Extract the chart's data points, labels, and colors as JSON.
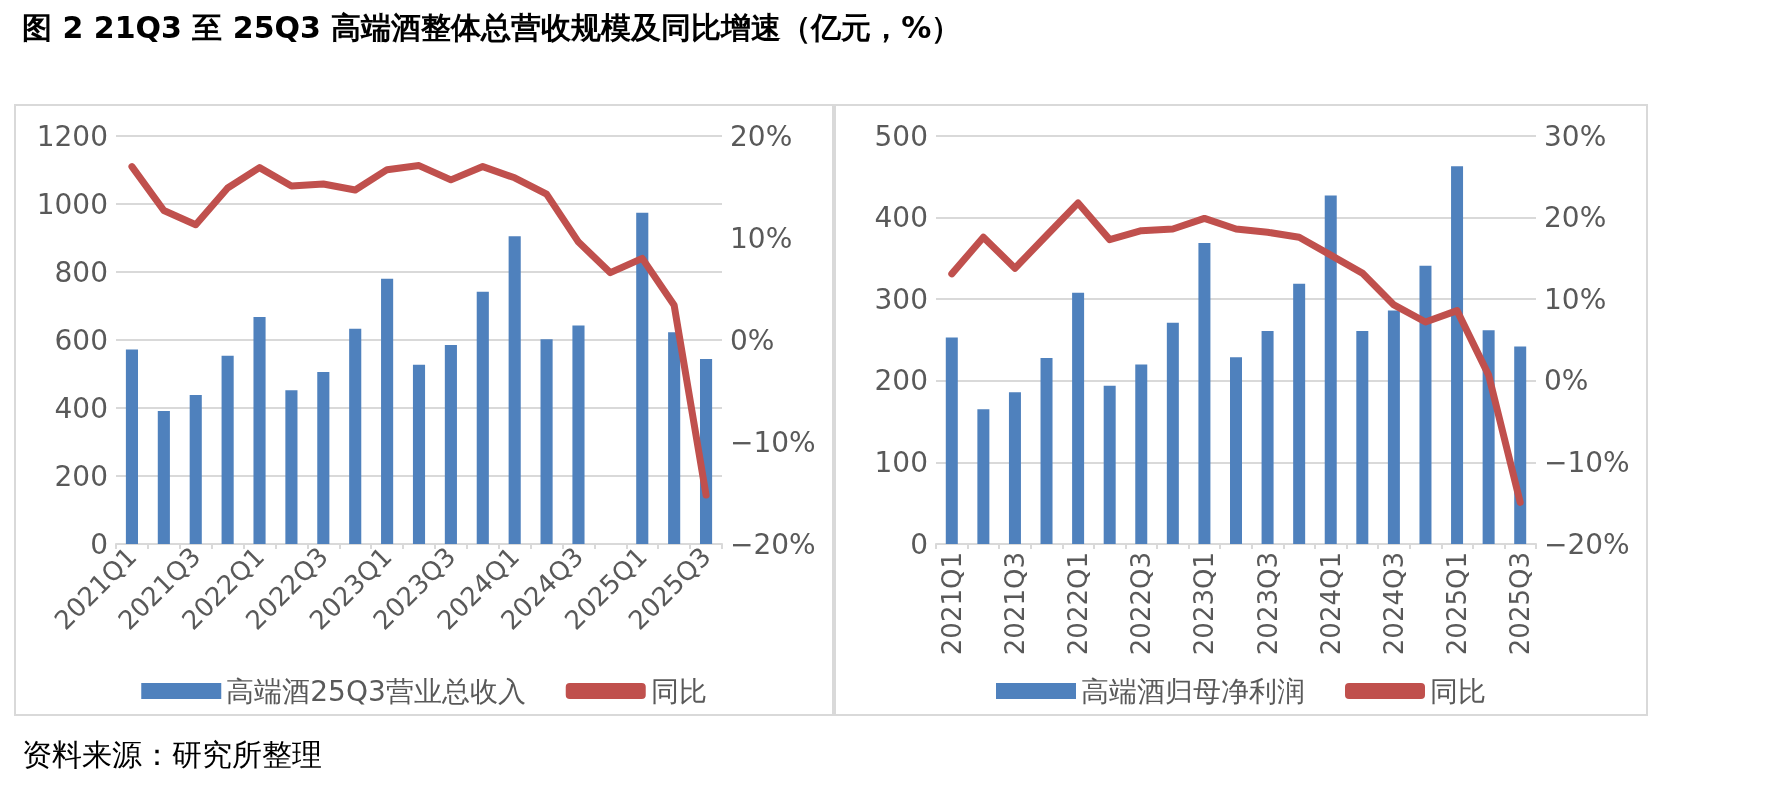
{
  "chart_data": [
    {
      "type": "bar",
      "title": "图 2 21Q3 至 25Q3 高端酒整体总营收规模及同比增速（亿元，%）",
      "categories": [
        "2021Q1",
        null,
        "2021Q3",
        null,
        "2022Q1",
        null,
        "2022Q3",
        null,
        "2023Q1",
        null,
        "2023Q3",
        null,
        "2024Q1",
        null,
        "2024Q3",
        null,
        "2025Q1",
        null,
        "2025Q3"
      ],
      "series": [
        {
          "name": "高端酒25Q3营业总收入",
          "color": "#4f81bd",
          "values": [
            572,
            391,
            438,
            554,
            668,
            452,
            506,
            633,
            780,
            527,
            585,
            742,
            905,
            602,
            643,
            null,
            974,
            623,
            544
          ]
        },
        {
          "name": "同比",
          "type": "line",
          "axis": "y2",
          "color": "#c0504d",
          "values": [
            17.0,
            12.7,
            11.3,
            14.9,
            16.9,
            15.1,
            15.3,
            14.7,
            16.7,
            17.1,
            15.7,
            17.0,
            15.9,
            14.3,
            9.6,
            6.6,
            8.0,
            3.4,
            -15.2
          ]
        }
      ],
      "ylim": [
        0,
        1200
      ],
      "yticks": [
        0,
        200,
        400,
        600,
        800,
        1000,
        1200
      ],
      "y2lim": [
        -20,
        20
      ],
      "y2ticks": [
        {
          "value": -20,
          "label": "−20%"
        },
        {
          "value": -10,
          "label": "−10%"
        },
        {
          "value": 0,
          "label": "0%"
        },
        {
          "value": 10,
          "label": "10%"
        },
        {
          "value": 20,
          "label": "20%"
        }
      ],
      "grid": "y",
      "legend": "bottom",
      "marker": "none"
    },
    {
      "type": "bar",
      "categories": [
        "2021Q1",
        null,
        "2021Q3",
        null,
        "2022Q1",
        null,
        "2022Q3",
        null,
        "2023Q1",
        null,
        "2023Q3",
        null,
        "2024Q1",
        null,
        "2024Q3",
        null,
        "2025Q1",
        null,
        "2025Q3"
      ],
      "series": [
        {
          "name": "高端酒归母净利润",
          "color": "#4f81bd",
          "values": [
            253,
            165,
            186,
            228,
            308,
            194,
            220,
            271,
            369,
            229,
            261,
            319,
            427,
            261,
            286,
            341,
            463,
            262,
            242
          ]
        },
        {
          "name": "同比",
          "type": "line",
          "axis": "y2",
          "color": "#c0504d",
          "values": [
            13.1,
            17.6,
            13.8,
            17.8,
            21.8,
            17.3,
            18.4,
            18.6,
            19.9,
            18.6,
            18.2,
            17.6,
            15.4,
            13.2,
            9.3,
            7.2,
            8.6,
            0.7,
            -14.9
          ]
        }
      ],
      "ylim": [
        0,
        500
      ],
      "yticks": [
        0,
        100,
        200,
        300,
        400,
        500
      ],
      "y2lim": [
        -20,
        30
      ],
      "y2ticks": [
        {
          "value": -20,
          "label": "−20%"
        },
        {
          "value": -10,
          "label": "−10%"
        },
        {
          "value": 0,
          "label": "0%"
        },
        {
          "value": 10,
          "label": "10%"
        },
        {
          "value": 20,
          "label": "20%"
        },
        {
          "value": 30,
          "label": "30%"
        }
      ],
      "grid": "y",
      "legend": "bottom",
      "marker": "none",
      "annotations": [
        "资料来源：研究所整理"
      ]
    }
  ]
}
